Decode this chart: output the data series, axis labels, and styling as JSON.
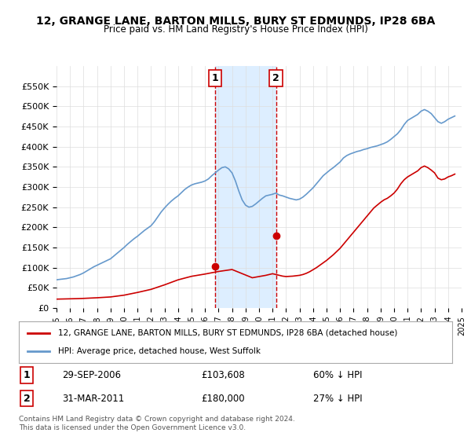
{
  "title": "12, GRANGE LANE, BARTON MILLS, BURY ST EDMUNDS, IP28 6BA",
  "subtitle": "Price paid vs. HM Land Registry's House Price Index (HPI)",
  "legend_line1": "12, GRANGE LANE, BARTON MILLS, BURY ST EDMUNDS, IP28 6BA (detached house)",
  "legend_line2": "HPI: Average price, detached house, West Suffolk",
  "transaction1_label": "1",
  "transaction1_date": "29-SEP-2006",
  "transaction1_price": "£103,608",
  "transaction1_hpi": "60% ↓ HPI",
  "transaction2_label": "2",
  "transaction2_date": "31-MAR-2011",
  "transaction2_price": "£180,000",
  "transaction2_hpi": "27% ↓ HPI",
  "footnote": "Contains HM Land Registry data © Crown copyright and database right 2024.\nThis data is licensed under the Open Government Licence v3.0.",
  "hpi_color": "#6699cc",
  "price_color": "#cc0000",
  "shade_color": "#ddeeff",
  "vline_color": "#cc0000",
  "ylim": [
    0,
    600000
  ],
  "yticks": [
    0,
    50000,
    100000,
    150000,
    200000,
    250000,
    300000,
    350000,
    400000,
    450000,
    500000,
    550000
  ],
  "ytick_labels": [
    "£0",
    "£50K",
    "£100K",
    "£150K",
    "£200K",
    "£250K",
    "£300K",
    "£350K",
    "£400K",
    "£450K",
    "£500K",
    "£550K"
  ],
  "hpi_x": [
    1995.0,
    1995.25,
    1995.5,
    1995.75,
    1996.0,
    1996.25,
    1996.5,
    1996.75,
    1997.0,
    1997.25,
    1997.5,
    1997.75,
    1998.0,
    1998.25,
    1998.5,
    1998.75,
    1999.0,
    1999.25,
    1999.5,
    1999.75,
    2000.0,
    2000.25,
    2000.5,
    2000.75,
    2001.0,
    2001.25,
    2001.5,
    2001.75,
    2002.0,
    2002.25,
    2002.5,
    2002.75,
    2003.0,
    2003.25,
    2003.5,
    2003.75,
    2004.0,
    2004.25,
    2004.5,
    2004.75,
    2005.0,
    2005.25,
    2005.5,
    2005.75,
    2006.0,
    2006.25,
    2006.5,
    2006.75,
    2007.0,
    2007.25,
    2007.5,
    2007.75,
    2008.0,
    2008.25,
    2008.5,
    2008.75,
    2009.0,
    2009.25,
    2009.5,
    2009.75,
    2010.0,
    2010.25,
    2010.5,
    2010.75,
    2011.0,
    2011.25,
    2011.5,
    2011.75,
    2012.0,
    2012.25,
    2012.5,
    2012.75,
    2013.0,
    2013.25,
    2013.5,
    2013.75,
    2014.0,
    2014.25,
    2014.5,
    2014.75,
    2015.0,
    2015.25,
    2015.5,
    2015.75,
    2016.0,
    2016.25,
    2016.5,
    2016.75,
    2017.0,
    2017.25,
    2017.5,
    2017.75,
    2018.0,
    2018.25,
    2018.5,
    2018.75,
    2019.0,
    2019.25,
    2019.5,
    2019.75,
    2020.0,
    2020.25,
    2020.5,
    2020.75,
    2021.0,
    2021.25,
    2021.5,
    2021.75,
    2022.0,
    2022.25,
    2022.5,
    2022.75,
    2023.0,
    2023.25,
    2023.5,
    2023.75,
    2024.0,
    2024.25,
    2024.5
  ],
  "hpi_y": [
    70000,
    71000,
    72000,
    73000,
    75000,
    77000,
    80000,
    83000,
    87000,
    92000,
    97000,
    102000,
    106000,
    110000,
    114000,
    118000,
    122000,
    129000,
    136000,
    143000,
    150000,
    158000,
    165000,
    172000,
    178000,
    185000,
    192000,
    198000,
    204000,
    214000,
    226000,
    238000,
    248000,
    257000,
    265000,
    272000,
    278000,
    286000,
    294000,
    300000,
    305000,
    308000,
    310000,
    312000,
    315000,
    320000,
    328000,
    335000,
    342000,
    348000,
    350000,
    345000,
    335000,
    315000,
    290000,
    268000,
    255000,
    250000,
    252000,
    258000,
    265000,
    272000,
    278000,
    280000,
    282000,
    285000,
    280000,
    278000,
    275000,
    272000,
    270000,
    268000,
    270000,
    275000,
    282000,
    290000,
    298000,
    308000,
    318000,
    328000,
    335000,
    342000,
    348000,
    355000,
    362000,
    372000,
    378000,
    382000,
    385000,
    388000,
    390000,
    393000,
    395000,
    398000,
    400000,
    402000,
    405000,
    408000,
    412000,
    418000,
    425000,
    432000,
    442000,
    455000,
    465000,
    470000,
    475000,
    480000,
    488000,
    492000,
    488000,
    482000,
    472000,
    462000,
    458000,
    462000,
    468000,
    472000,
    476000
  ],
  "price_x": [
    1995.0,
    1995.25,
    1995.5,
    1995.75,
    1996.0,
    1996.25,
    1996.5,
    1996.75,
    1997.0,
    1997.25,
    1997.5,
    1997.75,
    1998.0,
    1998.25,
    1998.5,
    1998.75,
    1999.0,
    1999.25,
    1999.5,
    1999.75,
    2000.0,
    2000.25,
    2000.5,
    2000.75,
    2001.0,
    2001.25,
    2001.5,
    2001.75,
    2002.0,
    2002.25,
    2002.5,
    2002.75,
    2003.0,
    2003.25,
    2003.5,
    2003.75,
    2004.0,
    2004.25,
    2004.5,
    2004.75,
    2005.0,
    2005.25,
    2005.5,
    2005.75,
    2006.0,
    2006.25,
    2006.5,
    2006.75,
    2007.0,
    2007.25,
    2007.5,
    2007.75,
    2008.0,
    2008.25,
    2008.5,
    2008.75,
    2009.0,
    2009.25,
    2009.5,
    2009.75,
    2010.0,
    2010.25,
    2010.5,
    2010.75,
    2011.0,
    2011.25,
    2011.5,
    2011.75,
    2012.0,
    2012.25,
    2012.5,
    2012.75,
    2013.0,
    2013.25,
    2013.5,
    2013.75,
    2014.0,
    2014.25,
    2014.5,
    2014.75,
    2015.0,
    2015.25,
    2015.5,
    2015.75,
    2016.0,
    2016.25,
    2016.5,
    2016.75,
    2017.0,
    2017.25,
    2017.5,
    2017.75,
    2018.0,
    2018.25,
    2018.5,
    2018.75,
    2019.0,
    2019.25,
    2019.5,
    2019.75,
    2020.0,
    2020.25,
    2020.5,
    2020.75,
    2021.0,
    2021.25,
    2021.5,
    2021.75,
    2022.0,
    2022.25,
    2022.5,
    2022.75,
    2023.0,
    2023.25,
    2023.5,
    2023.75,
    2024.0,
    2024.25,
    2024.5
  ],
  "price_y": [
    22000,
    22200,
    22400,
    22600,
    22800,
    23000,
    23200,
    23500,
    23800,
    24200,
    24600,
    25000,
    25400,
    25900,
    26400,
    26900,
    27400,
    28500,
    29600,
    30700,
    31800,
    33500,
    35200,
    36900,
    38600,
    40500,
    42400,
    44300,
    46200,
    49000,
    51800,
    54600,
    57400,
    60500,
    63600,
    66700,
    69800,
    72000,
    74200,
    76400,
    78600,
    80000,
    81400,
    82800,
    84200,
    85800,
    87400,
    89000,
    90600,
    91800,
    93000,
    94200,
    95400,
    92000,
    88600,
    85200,
    81800,
    78400,
    75000,
    76500,
    78000,
    79500,
    81000,
    83000,
    85000,
    83000,
    81000,
    79000,
    78000,
    78500,
    79000,
    80000,
    81000,
    83000,
    86000,
    90000,
    95000,
    100000,
    106000,
    112000,
    118000,
    125000,
    132000,
    140000,
    148000,
    158000,
    168000,
    178000,
    188000,
    198000,
    208000,
    218000,
    228000,
    238000,
    248000,
    255000,
    262000,
    268000,
    272000,
    278000,
    285000,
    295000,
    308000,
    318000,
    325000,
    330000,
    335000,
    340000,
    348000,
    352000,
    348000,
    342000,
    335000,
    322000,
    318000,
    320000,
    325000,
    328000,
    332000
  ],
  "transaction1_x": 2006.75,
  "transaction1_y": 103608,
  "transaction2_x": 2011.25,
  "transaction2_y": 180000,
  "shade_x1": 2006.75,
  "shade_x2": 2011.25,
  "xmin": 1995.0,
  "xmax": 2025.0,
  "xticks": [
    1995,
    1996,
    1997,
    1998,
    1999,
    2000,
    2001,
    2002,
    2003,
    2004,
    2005,
    2006,
    2007,
    2008,
    2009,
    2010,
    2011,
    2012,
    2013,
    2014,
    2015,
    2016,
    2017,
    2018,
    2019,
    2020,
    2021,
    2022,
    2023,
    2024,
    2025
  ]
}
